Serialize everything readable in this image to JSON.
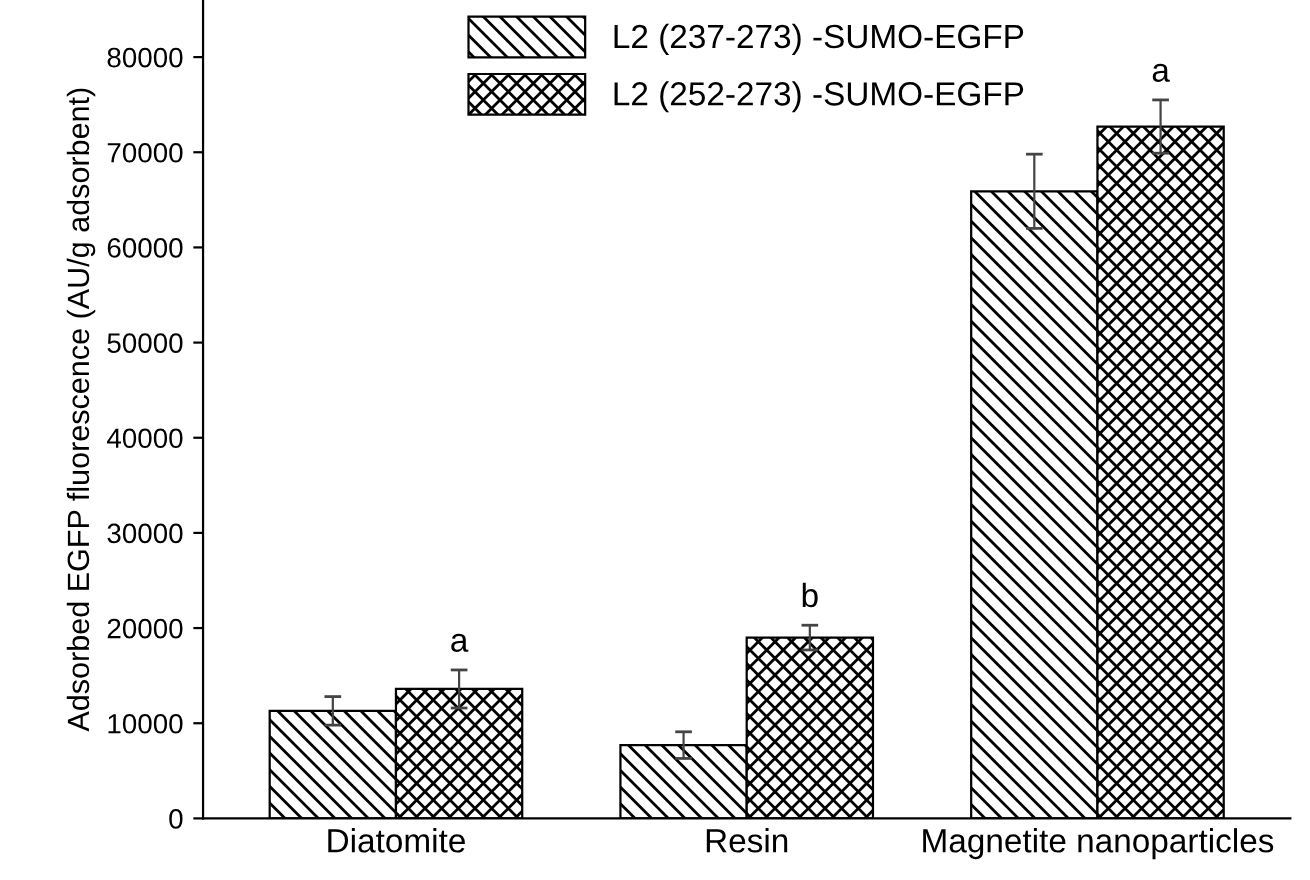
{
  "chart_data": {
    "type": "bar",
    "ylabel": "Adsorbed EGFP fluorescence (AU/g adsorbent)",
    "categories": [
      "Diatomite",
      "Resin",
      "Magnetite nanoparticles"
    ],
    "series": [
      {
        "name": "L2 (237-273) -SUMO-EGFP",
        "color": "#000000",
        "values": [
          11300,
          7700,
          65900
        ],
        "errors": [
          1500,
          1400,
          3900
        ]
      },
      {
        "name": "L2 (252-273) -SUMO-EGFP",
        "color": "#000000",
        "values": [
          13600,
          19000,
          72700
        ],
        "errors": [
          2000,
          1300,
          2800
        ]
      }
    ],
    "annotations": [
      "a",
      "b",
      "a"
    ],
    "ylim": [
      0,
      86000
    ],
    "yticks": [
      0,
      10000,
      20000,
      30000,
      40000,
      50000,
      60000,
      70000,
      80000
    ],
    "grid": false,
    "legend": "top"
  }
}
